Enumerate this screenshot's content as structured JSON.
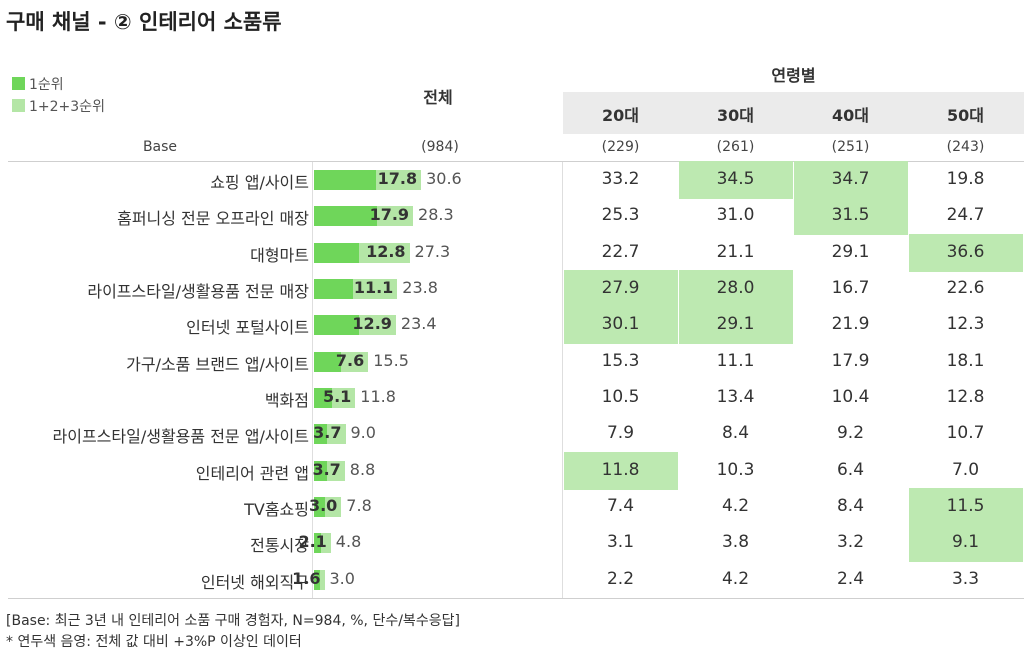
{
  "title": "구매 채널 - ② 인테리어 소품류",
  "legend": [
    {
      "label": "1순위",
      "color": "#6fd65a"
    },
    {
      "label": "1+2+3순위",
      "color": "#b4e6a6"
    }
  ],
  "headers": {
    "total": "전체",
    "age_group": "연령별",
    "age_columns": [
      "20대",
      "30대",
      "40대",
      "50대"
    ]
  },
  "base": {
    "label": "Base",
    "total": "(984)",
    "ages": [
      "(229)",
      "(261)",
      "(251)",
      "(243)"
    ]
  },
  "chart_data": {
    "type": "bar",
    "title": "구매 채널 - ② 인테리어 소품류",
    "xlabel": "",
    "ylabel": "",
    "xlim": [
      0,
      100
    ],
    "categories": [
      "쇼핑 앱/사이트",
      "홈퍼니싱 전문 오프라인 매장",
      "대형마트",
      "라이프스타일/생활용품 전문 매장",
      "인터넷 포털사이트",
      "가구/소품 브랜드 앱/사이트",
      "백화점",
      "라이프스타일/생활용품 전문 앱/사이트",
      "인테리어 관련 앱",
      "TV홈쇼핑",
      "전통시장",
      "인터넷 해외직구"
    ],
    "series": [
      {
        "name": "1순위",
        "color": "#6fd65a",
        "values": [
          17.8,
          17.9,
          12.8,
          11.1,
          12.9,
          7.6,
          5.1,
          3.7,
          3.7,
          3.0,
          2.1,
          1.6
        ]
      },
      {
        "name": "1+2+3순위",
        "color": "#b4e6a6",
        "values": [
          30.6,
          28.3,
          27.3,
          23.8,
          23.4,
          15.5,
          11.8,
          9.0,
          8.8,
          7.8,
          4.8,
          3.0
        ]
      }
    ],
    "age_table": {
      "columns": [
        "20대",
        "30대",
        "40대",
        "50대"
      ],
      "rows": [
        [
          33.2,
          34.5,
          34.7,
          19.8
        ],
        [
          25.3,
          31.0,
          31.5,
          24.7
        ],
        [
          22.7,
          21.1,
          29.1,
          36.6
        ],
        [
          27.9,
          28.0,
          16.7,
          22.6
        ],
        [
          30.1,
          29.1,
          21.9,
          12.3
        ],
        [
          15.3,
          11.1,
          17.9,
          18.1
        ],
        [
          10.5,
          13.4,
          10.4,
          12.8
        ],
        [
          7.9,
          8.4,
          9.2,
          10.7
        ],
        [
          11.8,
          10.3,
          6.4,
          7.0
        ],
        [
          7.4,
          4.2,
          8.4,
          11.5
        ],
        [
          3.1,
          3.8,
          3.2,
          9.1
        ],
        [
          2.2,
          4.2,
          2.4,
          3.3
        ]
      ],
      "highlighted": [
        [
          false,
          true,
          true,
          false
        ],
        [
          false,
          false,
          true,
          false
        ],
        [
          false,
          false,
          false,
          true
        ],
        [
          true,
          true,
          false,
          false
        ],
        [
          true,
          true,
          false,
          false
        ],
        [
          false,
          false,
          false,
          false
        ],
        [
          false,
          false,
          false,
          false
        ],
        [
          false,
          false,
          false,
          false
        ],
        [
          true,
          false,
          false,
          false
        ],
        [
          false,
          false,
          false,
          true
        ],
        [
          false,
          false,
          false,
          true
        ],
        [
          false,
          false,
          false,
          false
        ]
      ],
      "highlight_color": "#bde9b1"
    }
  },
  "footnotes": [
    "[Base: 최근 3년 내 인테리어 소품 구매 경험자, N=984, %, 단수/복수응답]",
    "* 연두색 음영: 전체 값 대비 +3%P 이상인 데이터"
  ]
}
